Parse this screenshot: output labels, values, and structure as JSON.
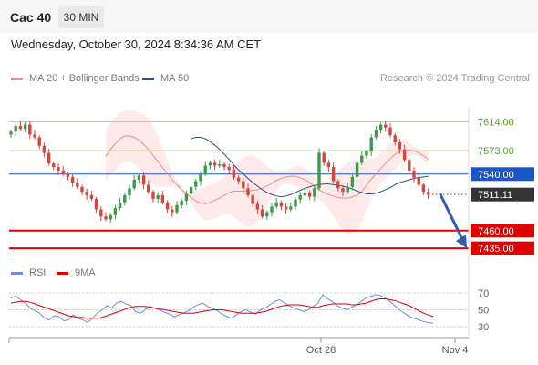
{
  "header": {
    "instrument": "Cac 40",
    "timeframe": "30 MIN"
  },
  "datetime": "Wednesday, October 30, 2024 8:34:36 AM CET",
  "legend_main": [
    {
      "label": "MA 20 + Bollinger Bands",
      "color": "#f28b82"
    },
    {
      "label": "MA 50",
      "color": "#2a4f8f"
    }
  ],
  "legend_rsi": [
    {
      "label": "RSI",
      "color": "#6d8fd8"
    },
    {
      "label": "9MA",
      "color": "#e00000"
    }
  ],
  "credit": "Research © 2024 Trading Central",
  "chart_data": {
    "type": "candlestick",
    "xlabels": [
      "Oct 28",
      "Nov 4"
    ],
    "price_levels": [
      {
        "value": 7614.0,
        "label": "7614.00",
        "kind": "resistance"
      },
      {
        "value": 7573.0,
        "label": "7573.00",
        "kind": "resistance"
      },
      {
        "value": 7540.0,
        "label": "7540.00",
        "kind": "pivot"
      },
      {
        "value": 7511.11,
        "label": "7511.11",
        "kind": "last"
      },
      {
        "value": 7460.0,
        "label": "7460.00",
        "kind": "support"
      },
      {
        "value": 7435.0,
        "label": "7435.00",
        "kind": "support"
      }
    ],
    "forecast_arrow": {
      "from": 7511.11,
      "to": 7435.0
    },
    "rsi_levels": [
      "70",
      "50",
      "30"
    ],
    "closes": [
      7600,
      7608,
      7604,
      7610,
      7596,
      7592,
      7580,
      7570,
      7555,
      7550,
      7545,
      7540,
      7536,
      7528,
      7522,
      7515,
      7510,
      7505,
      7490,
      7480,
      7476,
      7482,
      7492,
      7500,
      7510,
      7520,
      7532,
      7538,
      7525,
      7515,
      7505,
      7510,
      7500,
      7490,
      7486,
      7496,
      7502,
      7512,
      7522,
      7530,
      7540,
      7552,
      7556,
      7552,
      7554,
      7550,
      7546,
      7535,
      7530,
      7520,
      7510,
      7498,
      7490,
      7480,
      7486,
      7494,
      7500,
      7494,
      7490,
      7494,
      7504,
      7510,
      7514,
      7508,
      7520,
      7570,
      7556,
      7550,
      7530,
      7520,
      7515,
      7522,
      7536,
      7556,
      7566,
      7572,
      7592,
      7602,
      7610,
      7606,
      7595,
      7585,
      7575,
      7560,
      7545,
      7535,
      7525,
      7515,
      7511
    ],
    "ma20": [
      7565,
      7575,
      7583,
      7590,
      7594,
      7594,
      7592,
      7588,
      7582,
      7575,
      7566,
      7558,
      7549,
      7541,
      7532,
      7525,
      7518,
      7512,
      7507,
      7502,
      7499,
      7498,
      7500,
      7503,
      7506,
      7510,
      7514,
      7516,
      7516,
      7516,
      7516,
      7517,
      7518,
      7520,
      7523,
      7527,
      7531,
      7534,
      7536,
      7537,
      7537,
      7535,
      7532,
      7528,
      7523,
      7518,
      7514,
      7511,
      7509,
      7507,
      7506,
      7506,
      7508,
      7510,
      7515,
      7525,
      7533,
      7540,
      7548,
      7555,
      7562,
      7568,
      7572,
      7574,
      7574,
      7573,
      7570,
      7566,
      7561
    ],
    "ma50": [
      7590,
      7592,
      7592,
      7590,
      7586,
      7581,
      7575,
      7568,
      7561,
      7553,
      7546,
      7540,
      7534,
      7528,
      7523,
      7518,
      7514,
      7511,
      7509,
      7508,
      7509,
      7511,
      7514,
      7517,
      7520,
      7522,
      7524,
      7525,
      7526,
      7526,
      7525,
      7524,
      7523,
      7521,
      7519,
      7516,
      7514,
      7512,
      7512,
      7513,
      7515,
      7518,
      7521,
      7525,
      7528,
      7530,
      7532,
      7534,
      7535,
      7536,
      7537
    ],
    "rsi": [
      64,
      66,
      62,
      58,
      52,
      49,
      46,
      40,
      38,
      43,
      42,
      37,
      38,
      44,
      40,
      38,
      35,
      40,
      46,
      50,
      55,
      52,
      58,
      60,
      57,
      55,
      48,
      46,
      50,
      54,
      52,
      50,
      47,
      45,
      42,
      44,
      46,
      49,
      53,
      56,
      58,
      54,
      52,
      49,
      45,
      42,
      40,
      44,
      48,
      50,
      47,
      45,
      50,
      52,
      56,
      60,
      62,
      58,
      55,
      52,
      50,
      48,
      50,
      54,
      58,
      68,
      63,
      60,
      55,
      52,
      50,
      53,
      56,
      60,
      64,
      66,
      68,
      67,
      64,
      60,
      55,
      50,
      46,
      42,
      40,
      38,
      36,
      35,
      34
    ],
    "rsi_ma": [
      58,
      59,
      60,
      60,
      59,
      57,
      55,
      53,
      51,
      49,
      47,
      45,
      43,
      42,
      41,
      41,
      40,
      40,
      40,
      41,
      43,
      45,
      47,
      49,
      51,
      53,
      54,
      54,
      54,
      53,
      52,
      51,
      50,
      49,
      48,
      47,
      46,
      46,
      46,
      47,
      48,
      49,
      50,
      50,
      50,
      49,
      48,
      47,
      46,
      46,
      46,
      46,
      47,
      48,
      50,
      52,
      54,
      55,
      56,
      56,
      56,
      55,
      54,
      53,
      53,
      55,
      56,
      57,
      57,
      57,
      57,
      56,
      56,
      57,
      58,
      60,
      62,
      63,
      63,
      62,
      61,
      59,
      57,
      55,
      52,
      49,
      46,
      44,
      42
    ]
  }
}
